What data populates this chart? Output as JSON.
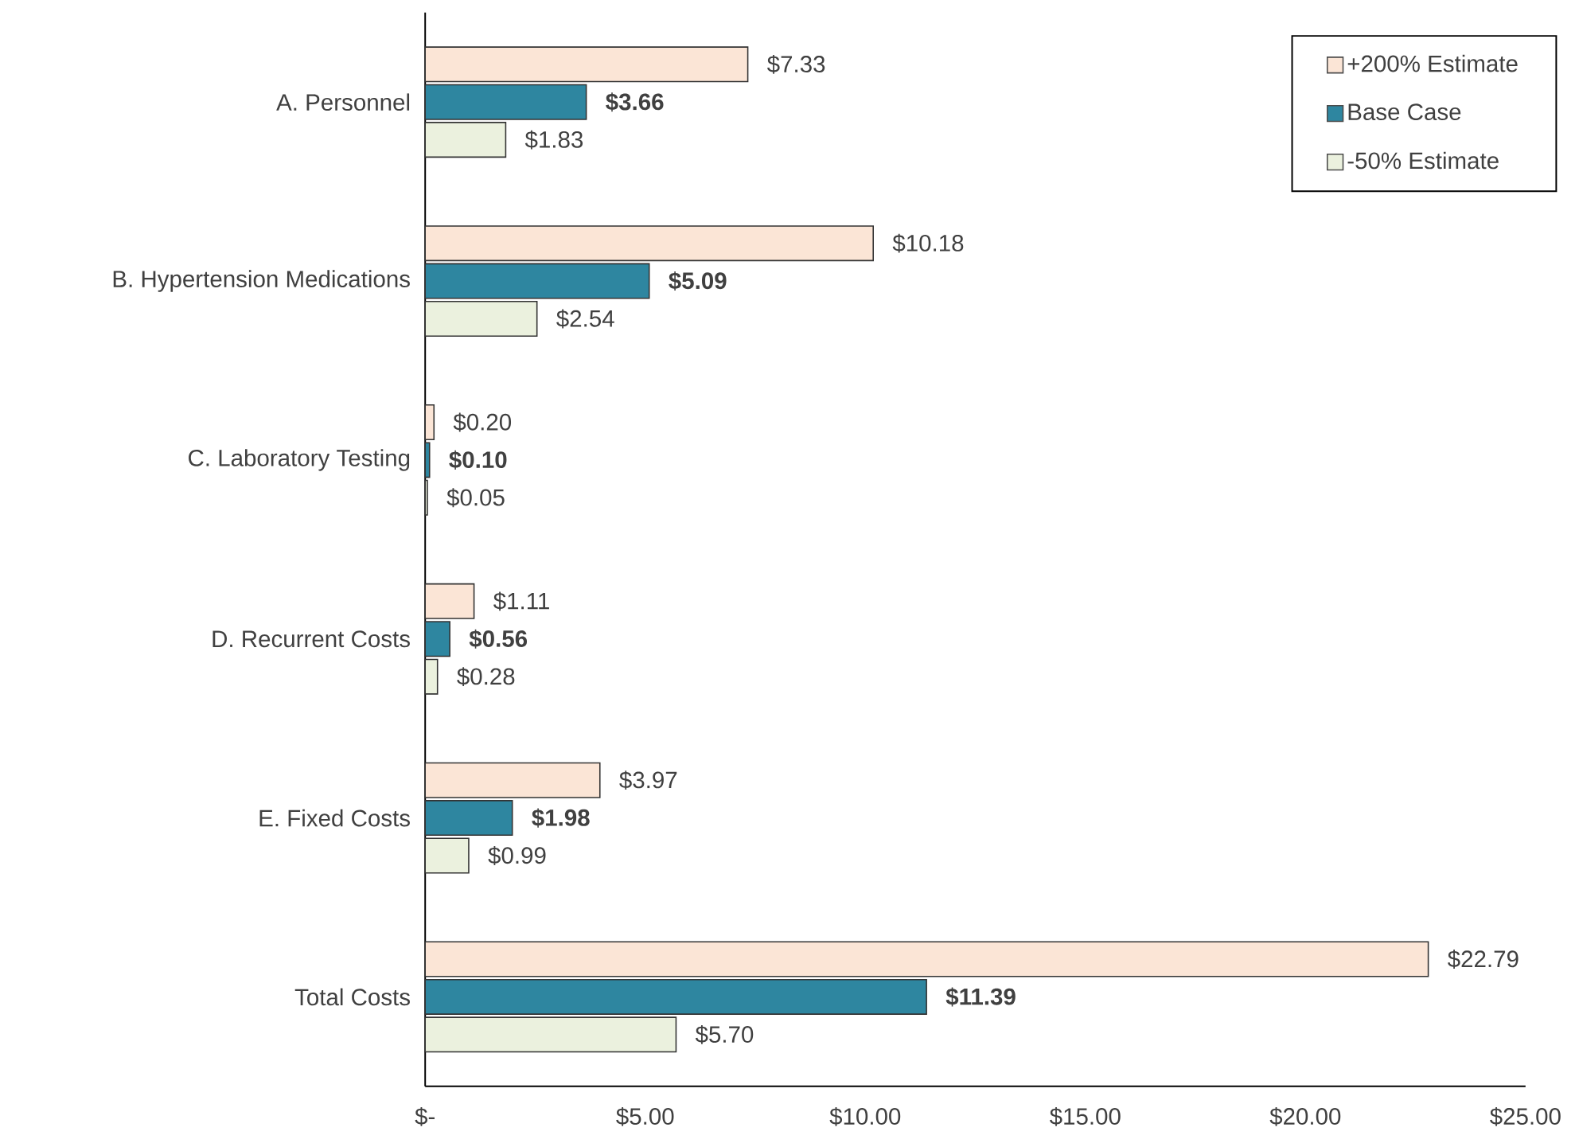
{
  "chart_data": {
    "type": "bar",
    "orientation": "horizontal",
    "legend": "top right",
    "categories": [
      "A. Personnel",
      "B. Hypertension Medications",
      "C. Laboratory Testing",
      "D. Recurrent Costs",
      "E. Fixed Costs",
      "Total Costs"
    ],
    "series": [
      {
        "name": "+200% Estimate",
        "color": "#fbe5d6",
        "values": [
          7.33,
          10.18,
          0.2,
          1.11,
          3.97,
          22.79
        ],
        "value_labels": [
          "$7.33",
          "$10.18",
          "$0.20",
          "$1.11",
          "$3.97",
          "$22.79"
        ]
      },
      {
        "name": "Base Case",
        "color": "#2e86a0",
        "values": [
          3.66,
          5.09,
          0.1,
          0.56,
          1.98,
          11.39
        ],
        "value_labels": [
          "**$3.66**",
          "**$5.09**",
          "**$0.10**",
          "**$0.56**",
          "**$1.98**",
          "**$11.39**"
        ]
      },
      {
        "name": "-50% Estimate",
        "color": "#ebf1de",
        "values": [
          1.83,
          2.54,
          0.05,
          0.28,
          0.99,
          5.7
        ],
        "value_labels": [
          "$1.83",
          "$2.54",
          "$0.05",
          "$0.28",
          "$0.99",
          "$5.70"
        ]
      }
    ],
    "xlim": [
      0,
      25
    ],
    "xticks": [
      {
        "value": 0,
        "label": "$-"
      },
      {
        "value": 5,
        "label": "$5.00"
      },
      {
        "value": 10,
        "label": "$10.00"
      },
      {
        "value": 15,
        "label": "$15.00"
      },
      {
        "value": 20,
        "label": "$20.00"
      },
      {
        "value": 25,
        "label": "$25.00"
      }
    ]
  }
}
